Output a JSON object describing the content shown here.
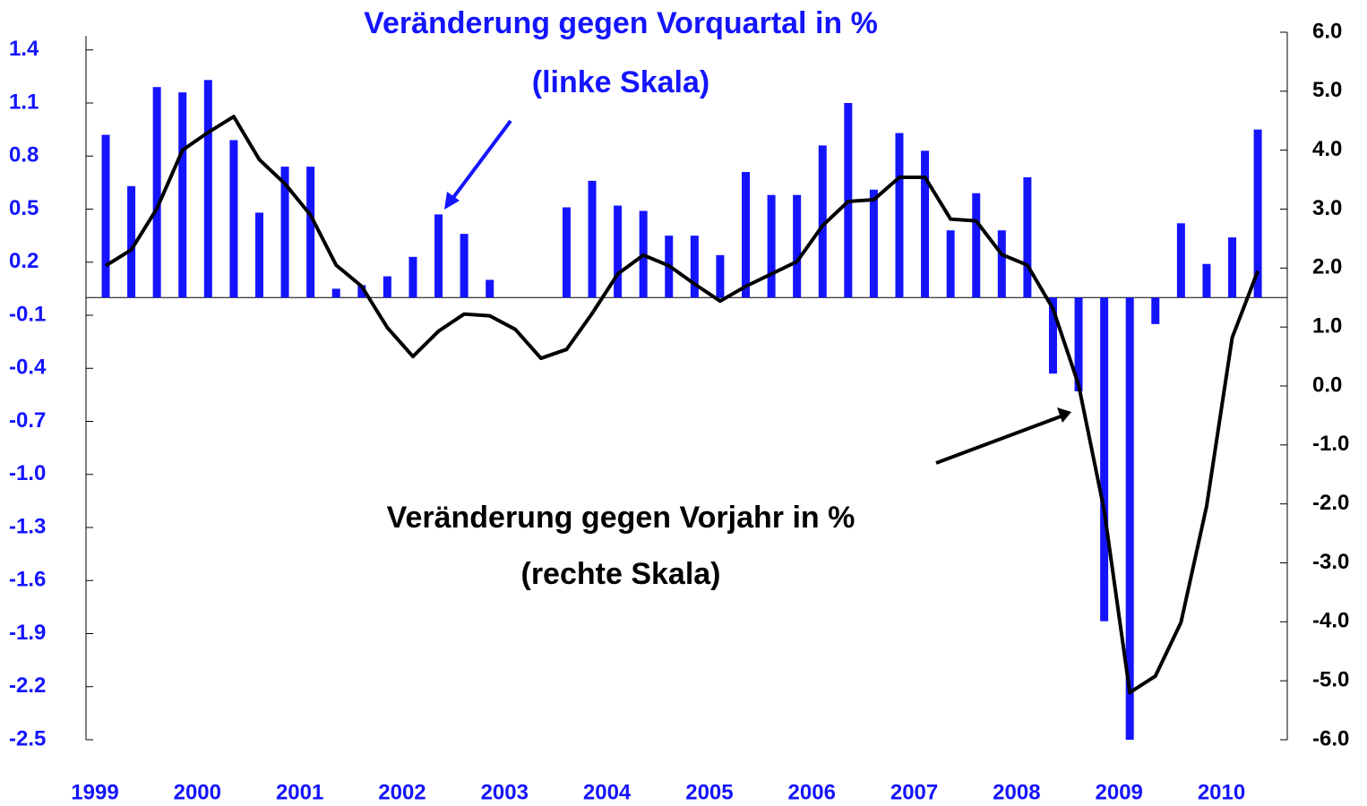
{
  "chart_data": {
    "type": "bar",
    "categories": [
      "1999",
      null,
      null,
      null,
      "2000",
      null,
      null,
      null,
      "2001",
      null,
      null,
      null,
      "2002",
      null,
      null,
      null,
      "2003",
      null,
      null,
      null,
      "2004",
      null,
      null,
      null,
      "2005",
      null,
      null,
      null,
      "2006",
      null,
      null,
      null,
      "2007",
      null,
      null,
      null,
      "2008",
      null,
      null,
      null,
      "2009",
      null,
      null,
      null,
      "2010",
      null
    ],
    "series": [
      {
        "name": "Veränderung gegen Vorquartal in %",
        "type": "bar",
        "color": "#1414ff",
        "axis": "y",
        "values": [
          0.92,
          0.63,
          1.19,
          1.16,
          1.23,
          0.89,
          0.48,
          0.74,
          0.74,
          0.05,
          0.07,
          0.12,
          0.23,
          0.47,
          0.36,
          0.1,
          0.0,
          0.0,
          0.51,
          0.66,
          0.52,
          0.49,
          0.35,
          0.35,
          0.24,
          0.71,
          0.58,
          0.58,
          0.86,
          1.1,
          0.61,
          0.93,
          0.83,
          0.38,
          0.59,
          0.38,
          0.68,
          -0.43,
          -0.53,
          -1.83,
          -2.5,
          -0.15,
          0.42,
          0.19,
          0.34,
          0.95
        ]
      },
      {
        "name": "Veränderung gegen Vorjahr in %",
        "type": "line",
        "color": "#000000",
        "axis": "y2",
        "values": [
          2.04,
          2.31,
          3.01,
          4.0,
          4.3,
          4.57,
          3.84,
          3.43,
          2.9,
          2.05,
          1.69,
          0.99,
          0.5,
          0.93,
          1.22,
          1.19,
          0.96,
          0.47,
          0.62,
          1.23,
          1.9,
          2.22,
          2.04,
          1.73,
          1.44,
          1.69,
          1.9,
          2.11,
          2.72,
          3.13,
          3.16,
          3.54,
          3.54,
          2.83,
          2.8,
          2.23,
          2.05,
          1.31,
          0.02,
          -2.11,
          -5.2,
          -4.92,
          -4.01,
          -2.04,
          0.82,
          1.95
        ]
      }
    ],
    "annotations": [
      "(linke Skala)",
      "(rechte Skala)"
    ],
    "ylim": [
      -2.5,
      1.5
    ],
    "yticks": [
      -2.5,
      -2.2,
      -1.9,
      -1.6,
      -1.3,
      {
        "value": -1,
        "label": "-1.0"
      },
      -0.7,
      -0.4,
      -0.1,
      0.2,
      0.5,
      0.8,
      1.1,
      1.4
    ],
    "y2lim": [
      -6,
      6
    ],
    "y2ticks": [
      {
        "value": -6,
        "label": "-6.0"
      },
      {
        "value": -5,
        "label": "-5.0"
      },
      {
        "value": -4,
        "label": "-4.0"
      },
      {
        "value": -3,
        "label": "-3.0"
      },
      {
        "value": -2,
        "label": "-2.0"
      },
      {
        "value": -1,
        "label": "-1.0"
      },
      {
        "value": 0,
        "label": "0.0"
      },
      {
        "value": 1,
        "label": "1.0"
      },
      {
        "value": 2,
        "label": "2.0"
      },
      {
        "value": 3,
        "label": "3.0"
      },
      {
        "value": 4,
        "label": "4.0"
      },
      {
        "value": 5,
        "label": "5.0"
      },
      {
        "value": 6,
        "label": "6.0"
      }
    ],
    "grid": false
  }
}
